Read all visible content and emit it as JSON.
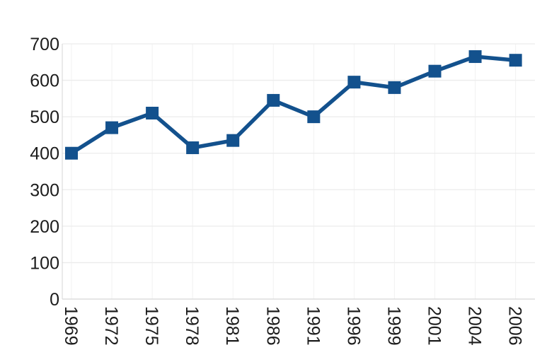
{
  "chart_data": {
    "type": "line",
    "title": "",
    "xlabel": "",
    "ylabel": "",
    "categories": [
      "1969",
      "1972",
      "1975",
      "1978",
      "1981",
      "1986",
      "1991",
      "1996",
      "1999",
      "2001",
      "2004",
      "2006"
    ],
    "values": [
      400,
      470,
      510,
      415,
      435,
      545,
      500,
      595,
      580,
      625,
      665,
      655
    ],
    "yticks": [
      "0",
      "100",
      "200",
      "300",
      "400",
      "500",
      "600",
      "700"
    ],
    "ytick_values": [
      0,
      100,
      200,
      300,
      400,
      500,
      600,
      700
    ],
    "ylim": [
      0,
      700
    ],
    "grid": true,
    "legend": false,
    "marker": "square",
    "x_label_rotation_deg": 90,
    "colors": {
      "series": "#13518d",
      "h_gridline": "#ececec",
      "v_gridline": "#f2f2f2",
      "axis_line": "#d6d6d6",
      "tick_label": "#1c1c1c",
      "background": "#ffffff"
    }
  }
}
